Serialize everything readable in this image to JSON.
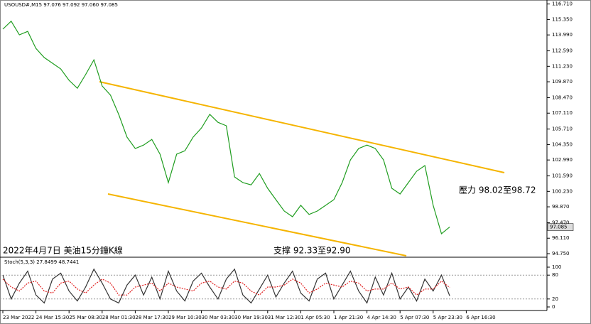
{
  "chart_data": [
    {
      "type": "line",
      "title": "USOUSD#,M15  97.076 97.092 97.060 97.085",
      "annotations": [
        "2022年4月7日 美油15分鐘K線",
        "支撑 92.33至92.90",
        "壓力 98.02至98.72"
      ],
      "last_price_label": "97.085",
      "last_price": 97.085,
      "series": [
        {
          "name": "Close",
          "color": "#1f9d1f",
          "values": [
            114.5,
            115.2,
            114.0,
            114.3,
            112.8,
            112.0,
            111.5,
            111.0,
            110.0,
            109.3,
            110.5,
            111.8,
            109.5,
            108.7,
            107.0,
            105.0,
            104.0,
            104.3,
            104.8,
            103.5,
            101.0,
            103.5,
            103.8,
            105.0,
            105.8,
            107.0,
            106.3,
            106.0,
            101.5,
            101.0,
            100.8,
            101.8,
            100.5,
            99.5,
            98.5,
            98.0,
            99.0,
            98.2,
            98.5,
            99.0,
            99.5,
            101.0,
            103.0,
            104.0,
            104.3,
            104.0,
            103.0,
            100.5,
            100.0,
            101.0,
            102.0,
            102.5,
            99.0,
            96.5,
            97.1
          ]
        }
      ],
      "ylim": [
        94.5,
        117.0
      ],
      "yticks": [
        {
          "value": 116.71,
          "label": "116.710"
        },
        {
          "value": 115.35,
          "label": "115.350"
        },
        {
          "value": 113.99,
          "label": "113.990"
        },
        {
          "value": 112.59,
          "label": "112.590"
        },
        {
          "value": 111.23,
          "label": "111.230"
        },
        {
          "value": 109.87,
          "label": "109.870"
        },
        {
          "value": 108.47,
          "label": "108.470"
        },
        {
          "value": 107.11,
          "label": "107.110"
        },
        {
          "value": 105.71,
          "label": "105.710"
        },
        {
          "value": 104.35,
          "label": "104.350"
        },
        {
          "value": 102.99,
          "label": "102.990"
        },
        {
          "value": 101.59,
          "label": "101.590"
        },
        {
          "value": 100.23,
          "label": "100.230"
        },
        {
          "value": 98.87,
          "label": "98.870"
        },
        {
          "value": 97.47,
          "label": "97.470"
        },
        {
          "value": 96.11,
          "label": "96.110"
        },
        {
          "value": 94.75,
          "label": "94.750"
        }
      ],
      "xticks": [
        {
          "value": 0,
          "label": "23 Mar 2022"
        },
        {
          "value": 4,
          "label": "24 Mar 15:30"
        },
        {
          "value": 8,
          "label": "25 Mar 08:30"
        },
        {
          "value": 12,
          "label": "28 Mar 01:30"
        },
        {
          "value": 16,
          "label": "28 Mar 17:30"
        },
        {
          "value": 20,
          "label": "29 Mar 10:30"
        },
        {
          "value": 24,
          "label": "30 Mar 03:30"
        },
        {
          "value": 28,
          "label": "30 Mar 19:30"
        },
        {
          "value": 32,
          "label": "31 Mar 12:30"
        },
        {
          "value": 36,
          "label": "1 Apr 05:30"
        },
        {
          "value": 40,
          "label": "1 Apr 21:30"
        },
        {
          "value": 44,
          "label": "4 Apr 14:30"
        },
        {
          "value": 48,
          "label": "5 Apr 07:30"
        },
        {
          "value": 52,
          "label": "5 Apr 23:30"
        },
        {
          "value": 56,
          "label": "6 Apr 16:30"
        }
      ]
    },
    {
      "type": "line",
      "title": "Stoch(5,3,3) 27.8499 48.7441",
      "series": [
        {
          "name": "Main",
          "color": "#333333",
          "values": [
            80,
            20,
            60,
            90,
            30,
            10,
            70,
            85,
            40,
            15,
            50,
            95,
            60,
            20,
            10,
            55,
            80,
            30,
            75,
            20,
            90,
            40,
            15,
            65,
            85,
            50,
            20,
            70,
            95,
            30,
            10,
            45,
            80,
            25,
            60,
            90,
            35,
            15,
            70,
            85,
            20,
            55,
            90,
            40,
            10,
            75,
            30,
            85,
            20,
            50,
            15,
            70,
            40,
            80,
            27.8499
          ]
        },
        {
          "name": "Signal",
          "color": "#e02020",
          "values": [
            70,
            50,
            40,
            60,
            65,
            40,
            35,
            60,
            65,
            45,
            35,
            55,
            70,
            60,
            30,
            30,
            50,
            55,
            60,
            40,
            60,
            50,
            45,
            40,
            60,
            65,
            50,
            45,
            65,
            60,
            40,
            30,
            50,
            50,
            55,
            70,
            60,
            35,
            45,
            60,
            55,
            50,
            65,
            60,
            40,
            45,
            45,
            60,
            45,
            50,
            30,
            45,
            45,
            65,
            48.7441
          ]
        }
      ],
      "ylim": [
        0,
        100
      ],
      "yticks": [
        100,
        80,
        20,
        0
      ]
    }
  ]
}
